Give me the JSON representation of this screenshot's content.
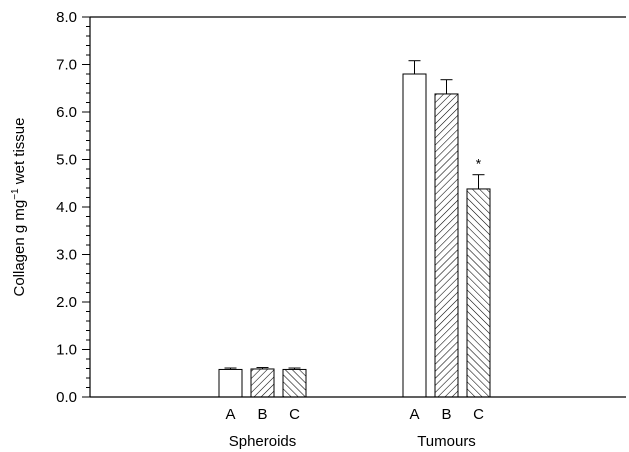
{
  "chart_data": {
    "type": "bar",
    "ylabel_pre": "Collagen   g mg",
    "ylabel_sup": "−1",
    "ylabel_post": " wet tissue",
    "ylim": [
      0,
      8
    ],
    "major_step": 1,
    "minor_step": 0.2,
    "yticks": [
      "0.0",
      "1.0",
      "2.0",
      "3.0",
      "4.0",
      "5.0",
      "6.0",
      "7.0",
      "8.0"
    ],
    "groups": [
      {
        "label": "Spheroids",
        "bars": [
          {
            "label": "A",
            "value": 0.58,
            "error": 0.03,
            "pattern": "none"
          },
          {
            "label": "B",
            "value": 0.59,
            "error": 0.03,
            "pattern": "hatch-right"
          },
          {
            "label": "C",
            "value": 0.58,
            "error": 0.03,
            "pattern": "hatch-left"
          }
        ]
      },
      {
        "label": "Tumours",
        "bars": [
          {
            "label": "A",
            "value": 6.8,
            "error": 0.28,
            "pattern": "none"
          },
          {
            "label": "B",
            "value": 6.38,
            "error": 0.3,
            "pattern": "hatch-right"
          },
          {
            "label": "C",
            "value": 4.38,
            "error": 0.3,
            "pattern": "hatch-left",
            "annotation": "*"
          }
        ]
      }
    ]
  }
}
